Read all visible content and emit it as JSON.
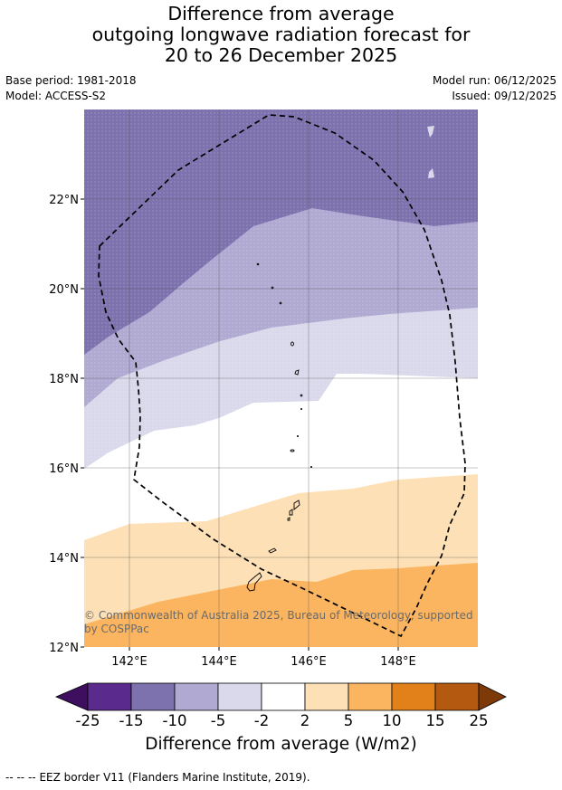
{
  "title": {
    "line1": "Difference from average",
    "line2": "outgoing longwave radiation forecast for",
    "line3": "20 to 26 December 2025"
  },
  "meta": {
    "base_period": "Base period: 1981-2018",
    "model": "Model: ACCESS-S2",
    "model_run": "Model run: 06/12/2025",
    "issued": "Issued: 09/12/2025"
  },
  "map": {
    "lat_labels": [
      "22°N",
      "20°N",
      "18°N",
      "16°N",
      "14°N",
      "12°N"
    ],
    "lon_labels": [
      "142°E",
      "144°E",
      "146°E",
      "148°E"
    ],
    "copyright": "© Commonwealth of Australia 2025, Bureau of Meteorology, supported by COSPPac"
  },
  "colorbar": {
    "ticks": [
      "-25",
      "-15",
      "-10",
      "-5",
      "-2",
      "2",
      "5",
      "10",
      "15",
      "25"
    ],
    "colors": [
      "#5a2a8c",
      "#7d72ad",
      "#b0aad2",
      "#d9d9eb",
      "#ffffff",
      "#fde0b5",
      "#fbb560",
      "#e2811a",
      "#b45a10"
    ],
    "under_color": "#3d0f5e",
    "over_color": "#7d3a08",
    "label": "Difference from average (W/m2)"
  },
  "footer": {
    "legend_symbol": "-- -- --",
    "eez_text": "EEZ border V11 (Flanders Marine Institute, 2019)."
  }
}
